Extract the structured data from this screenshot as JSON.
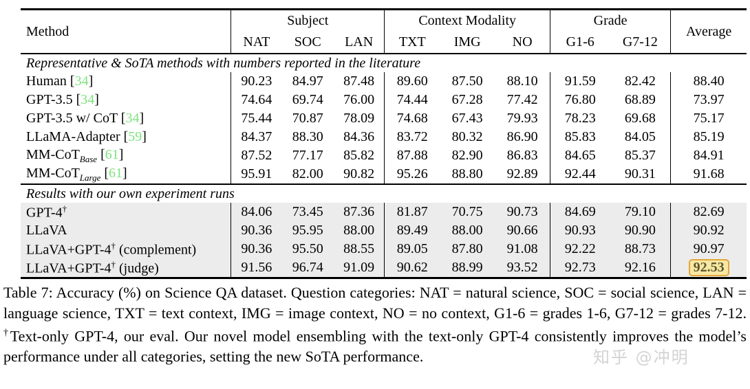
{
  "colors": {
    "citation_green": "#7de37d",
    "shaded_row_bg": "#ececec",
    "highlight_bg": "#f7e8a2",
    "highlight_border": "#e2a53c",
    "rule_black": "#000000",
    "watermark_gray": "#9e9e9e"
  },
  "table": {
    "header": {
      "method": "Method",
      "average": "Average",
      "groups": [
        {
          "label": "Subject",
          "cols": [
            "NAT",
            "SOC",
            "LAN"
          ]
        },
        {
          "label": "Context Modality",
          "cols": [
            "TXT",
            "IMG",
            "NO"
          ]
        },
        {
          "label": "Grade",
          "cols": [
            "G1-6",
            "G7-12"
          ]
        }
      ]
    },
    "sections": [
      {
        "title": "Representative & SoTA methods with numbers reported in the literature",
        "shaded": false,
        "rows": [
          {
            "name": "Human",
            "cite": "34",
            "values": [
              "90.23",
              "84.97",
              "87.48",
              "89.60",
              "87.50",
              "88.10",
              "91.59",
              "82.42",
              "88.40"
            ]
          },
          {
            "name": "GPT-3.5",
            "cite": "34",
            "values": [
              "74.64",
              "69.74",
              "76.00",
              "74.44",
              "67.28",
              "77.42",
              "76.80",
              "68.89",
              "73.97"
            ]
          },
          {
            "name": "GPT-3.5 w/ CoT",
            "cite": "34",
            "values": [
              "75.44",
              "70.87",
              "78.09",
              "74.68",
              "67.43",
              "79.93",
              "78.23",
              "69.68",
              "75.17"
            ]
          },
          {
            "name": "LLaMA-Adapter",
            "cite": "59",
            "values": [
              "84.37",
              "88.30",
              "84.36",
              "83.72",
              "80.32",
              "86.90",
              "85.83",
              "84.05",
              "85.19"
            ]
          },
          {
            "name": "MM-CoT",
            "sub": "Base",
            "cite": "61",
            "values": [
              "87.52",
              "77.17",
              "85.82",
              "87.88",
              "82.90",
              "86.83",
              "84.65",
              "85.37",
              "84.91"
            ]
          },
          {
            "name": "MM-CoT",
            "sub": "Large",
            "cite": "61",
            "values": [
              "95.91",
              "82.00",
              "90.82",
              "95.26",
              "88.80",
              "92.89",
              "92.44",
              "90.31",
              "91.68"
            ]
          }
        ]
      },
      {
        "title": "Results with our own experiment runs",
        "shaded": true,
        "rows": [
          {
            "name": "GPT-4",
            "sup": "†",
            "values": [
              "84.06",
              "73.45",
              "87.36",
              "81.87",
              "70.75",
              "90.73",
              "84.69",
              "79.10",
              "82.69"
            ]
          },
          {
            "name": "LLaVA",
            "values": [
              "90.36",
              "95.95",
              "88.00",
              "89.49",
              "88.00",
              "90.66",
              "90.93",
              "90.90",
              "90.92"
            ]
          },
          {
            "name": "LLaVA+GPT-4",
            "sup": "†",
            "suffix": " (complement)",
            "values": [
              "90.36",
              "95.50",
              "88.55",
              "89.05",
              "87.80",
              "91.08",
              "92.22",
              "88.73",
              "90.97"
            ]
          },
          {
            "name": "LLaVA+GPT-4",
            "sup": "†",
            "suffix": " (judge)",
            "highlight": true,
            "values": [
              "91.56",
              "96.74",
              "91.09",
              "90.62",
              "88.99",
              "93.52",
              "92.73",
              "92.16",
              "92.53"
            ]
          }
        ]
      }
    ]
  },
  "caption": {
    "part1": "Table 7: Accuracy (%) on Science QA dataset. Question categories: NAT = natural science, SOC = social science, LAN = language science, TXT = text context, IMG = image context, NO = no context, G1-6 = grades 1-6, G7-12 = grades 7-12. ",
    "dagger": "†",
    "part2": "Text-only GPT-4, our eval. Our novel model ensembling with the text-only GPT-4 consistently improves the model’s performance under all categories, setting the new SoTA performance."
  },
  "watermark": "知乎 @冲明"
}
